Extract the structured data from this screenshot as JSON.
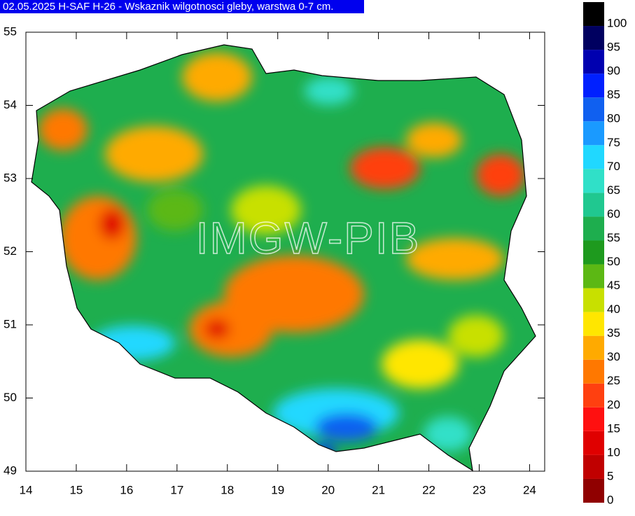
{
  "title": "02.05.2025 H-SAF H-26 - Wskaznik wilgotnosci gleby, warstwa 0-7 cm.",
  "watermark": "IMGW-PIB",
  "map": {
    "xlim": [
      14,
      24.3
    ],
    "ylim": [
      49,
      55
    ],
    "xticks": [
      14,
      15,
      16,
      17,
      18,
      19,
      20,
      21,
      22,
      23,
      24
    ],
    "yticks": [
      49,
      50,
      51,
      52,
      53,
      54,
      55
    ]
  },
  "legend": {
    "levels": [
      0,
      5,
      10,
      15,
      20,
      25,
      30,
      35,
      40,
      45,
      50,
      55,
      60,
      65,
      70,
      75,
      80,
      85,
      90,
      95,
      100
    ],
    "colors": [
      "#900000",
      "#c00000",
      "#e00000",
      "#ff1010",
      "#ff4010",
      "#ff7800",
      "#ffaa00",
      "#ffe600",
      "#c8e000",
      "#5cb814",
      "#1e9a1e",
      "#1eae4e",
      "#20c890",
      "#30e0c8",
      "#20d8ff",
      "#1a9aff",
      "#1060f0",
      "#0020ff",
      "#0000b0",
      "#000060",
      "#000000"
    ]
  }
}
